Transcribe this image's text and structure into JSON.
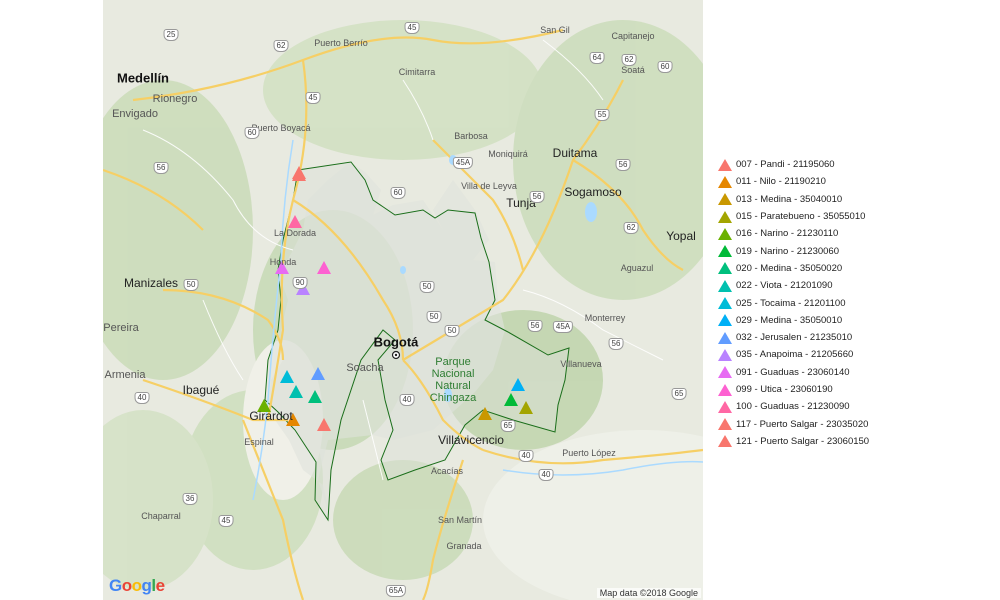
{
  "map": {
    "google_logo": [
      {
        "ch": "G",
        "color": "#4285F4"
      },
      {
        "ch": "o",
        "color": "#EA4335"
      },
      {
        "ch": "o",
        "color": "#FBBC05"
      },
      {
        "ch": "g",
        "color": "#4285F4"
      },
      {
        "ch": "l",
        "color": "#34A853"
      },
      {
        "ch": "e",
        "color": "#EA4335"
      }
    ],
    "attribution": "Map data ©2018 Google",
    "places": {
      "medellin": "Medellín",
      "rionegro": "Rionegro",
      "envigado": "Envigado",
      "manizales": "Manizales",
      "pereira": "Pereira",
      "armenia": "Armenia",
      "ibague": "Ibagué",
      "girardot": "Girardot",
      "espinal": "Espinal",
      "chaparral": "Chaparral",
      "puerto_berrio": "Puerto Berrío",
      "puerto_boyaca": "Puerto Boyacá",
      "cimitarra": "Cimitarra",
      "la_dorada": "La Dorada",
      "honda": "Honda",
      "barbosa": "Barbosa",
      "moniquira": "Moniquirá",
      "villa_de_leyva": "Villa de Leyva",
      "tunja": "Tunja",
      "duitama": "Duitama",
      "sogamoso": "Sogamoso",
      "san_gil": "San Gil",
      "capitanejo": "Capitanejo",
      "soata": "Soatá",
      "yopal": "Yopal",
      "aguazul": "Aguazul",
      "monterrey": "Monterrey",
      "villanueva": "Villanueva",
      "bogota": "Bogotá",
      "soacha": "Soacha",
      "villavicencio": "Villavicencio",
      "acacias": "Acacías",
      "puerto_lopez": "Puerto López",
      "san_martin": "San Martín",
      "granada": "Granada",
      "park": "Parque Nacional Natural Chingaza"
    },
    "shields": [
      "25",
      "62",
      "45",
      "64",
      "66",
      "62",
      "60",
      "45",
      "56",
      "45A",
      "60",
      "55",
      "56",
      "60",
      "56",
      "62",
      "50",
      "50",
      "90",
      "50",
      "45A",
      "50",
      "56",
      "56",
      "65",
      "40",
      "40",
      "40",
      "40",
      "36",
      "45",
      "65A",
      "65"
    ]
  },
  "legend": {
    "items": [
      {
        "label": "007 - Pandi - 21195060",
        "color": "#F8766D"
      },
      {
        "label": "011 - Nilo - 21190210",
        "color": "#E58700"
      },
      {
        "label": "013 - Medina - 35040010",
        "color": "#C99800"
      },
      {
        "label": "015 - Paratebueno - 35055010",
        "color": "#A3A500"
      },
      {
        "label": "016 - Narino - 21230110",
        "color": "#6BB100"
      },
      {
        "label": "019 - Narino - 21230060",
        "color": "#00BA38"
      },
      {
        "label": "020 - Medina - 35050020",
        "color": "#00BF7D"
      },
      {
        "label": "022 - Viota - 21201090",
        "color": "#00C0AF"
      },
      {
        "label": "025 - Tocaima - 21201100",
        "color": "#00BCD8"
      },
      {
        "label": "029 - Medina - 35050010",
        "color": "#00B0F6"
      },
      {
        "label": "032 - Jerusalen - 21235010",
        "color": "#619CFF"
      },
      {
        "label": "035 - Anapoima - 21205660",
        "color": "#B983FF"
      },
      {
        "label": "091 - Guaduas - 23060140",
        "color": "#E76BF3"
      },
      {
        "label": "099 - Utica - 23060190",
        "color": "#FD61D1"
      },
      {
        "label": "100 - Guaduas - 21230090",
        "color": "#FF67A4"
      },
      {
        "label": "117 - Puerto Salgar - 23035020",
        "color": "#F8766D"
      },
      {
        "label": "121 - Puerto Salgar - 23060150",
        "color": "#F8766D"
      }
    ]
  }
}
